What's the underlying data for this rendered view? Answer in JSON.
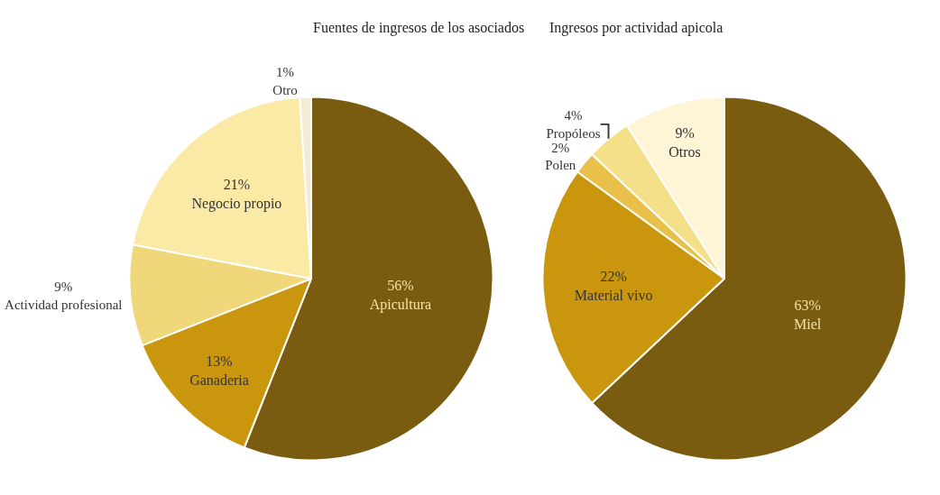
{
  "chart_data": [
    {
      "type": "pie",
      "title": "Fuentes de ingresos de los asociados",
      "categories": [
        "Apicultura",
        "Ganaderia",
        "Actividad profesional",
        "Negocio propio",
        "Otro"
      ],
      "values": [
        56,
        13,
        9,
        21,
        1
      ],
      "value_labels": [
        "56%",
        "13%",
        "9%",
        "21%",
        "1%"
      ],
      "colors": [
        "#7a5c10",
        "#c9960e",
        "#f0d77a",
        "#fbe9a6",
        "#f3ecd2"
      ]
    },
    {
      "type": "pie",
      "title": "Ingresos por actividad apicola",
      "categories": [
        "Miel",
        "Material vivo",
        "Polen",
        "Propóleos",
        "Otros"
      ],
      "values": [
        63,
        22,
        2,
        4,
        9
      ],
      "value_labels": [
        "63%",
        "22%",
        "2%",
        "4%",
        "9%"
      ],
      "colors": [
        "#7a5c10",
        "#c9960e",
        "#e8c04a",
        "#f5e08a",
        "#fdf5d5"
      ]
    }
  ]
}
